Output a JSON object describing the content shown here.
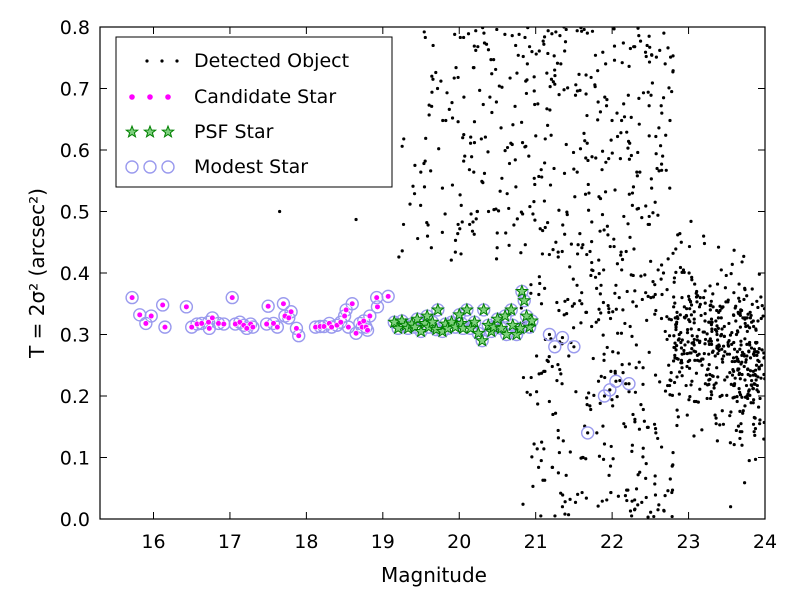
{
  "chart_data": {
    "type": "scatter",
    "xlabel": "Magnitude",
    "ylabel": "T = 2σ² (arcsec²)",
    "xlim": [
      15.3,
      24.0
    ],
    "ylim": [
      0.0,
      0.8
    ],
    "xticks": [
      16,
      17,
      18,
      19,
      20,
      21,
      22,
      23,
      24
    ],
    "yticks": [
      0.0,
      0.1,
      0.2,
      0.3,
      0.4,
      0.5,
      0.6,
      0.7,
      0.8
    ],
    "ytick_labels": [
      "0.0",
      "0.1",
      "0.2",
      "0.3",
      "0.4",
      "0.5",
      "0.6",
      "0.7",
      "0.8"
    ],
    "grid": false,
    "legend_position": "top-left",
    "legend": {
      "detected": "Detected Object",
      "candidate": "Candidate Star",
      "psf": "PSF Star",
      "modest": "Modest Star"
    },
    "colors": {
      "detected": "#000000",
      "candidate": "#ff00ff",
      "psf": "#008000",
      "modest": "#9a9aee"
    },
    "series": [
      {
        "name": "Candidate Star",
        "x": [
          15.72,
          15.82,
          15.9,
          15.97,
          16.12,
          16.15,
          16.43,
          16.5,
          16.57,
          16.63,
          16.72,
          16.73,
          16.77,
          16.85,
          16.92,
          17.03,
          17.07,
          17.13,
          17.18,
          17.22,
          17.27,
          17.3,
          17.48,
          17.5,
          17.57,
          17.62,
          17.7,
          17.72,
          17.77,
          17.8,
          17.87,
          17.9,
          18.12,
          18.18,
          18.23,
          18.3,
          18.33,
          18.4,
          18.45,
          18.5,
          18.52,
          18.55,
          18.6,
          18.65,
          18.7,
          18.73,
          18.75,
          18.78,
          18.8,
          18.83,
          18.92,
          18.93,
          19.07
        ],
        "y": [
          0.36,
          0.332,
          0.318,
          0.33,
          0.348,
          0.312,
          0.345,
          0.312,
          0.317,
          0.318,
          0.32,
          0.31,
          0.327,
          0.318,
          0.317,
          0.36,
          0.317,
          0.32,
          0.315,
          0.31,
          0.317,
          0.312,
          0.317,
          0.346,
          0.318,
          0.312,
          0.35,
          0.33,
          0.327,
          0.337,
          0.31,
          0.298,
          0.312,
          0.313,
          0.313,
          0.318,
          0.312,
          0.315,
          0.32,
          0.33,
          0.34,
          0.312,
          0.35,
          0.302,
          0.318,
          0.312,
          0.322,
          0.312,
          0.307,
          0.33,
          0.36,
          0.345,
          0.362
        ]
      },
      {
        "name": "PSF Star",
        "x": [
          19.15,
          19.2,
          19.25,
          19.3,
          19.33,
          19.38,
          19.42,
          19.45,
          19.5,
          19.55,
          19.58,
          19.6,
          19.65,
          19.7,
          19.72,
          19.78,
          19.82,
          19.85,
          19.9,
          19.95,
          20.0,
          20.03,
          20.05,
          20.1,
          20.15,
          20.2,
          20.25,
          20.3,
          20.32,
          20.38,
          20.42,
          20.45,
          20.5,
          20.55,
          20.6,
          20.62,
          20.68,
          20.7,
          20.75,
          20.8,
          20.82,
          20.85,
          20.88,
          20.92,
          20.95
        ],
        "y": [
          0.32,
          0.31,
          0.322,
          0.315,
          0.31,
          0.317,
          0.312,
          0.325,
          0.305,
          0.318,
          0.33,
          0.312,
          0.32,
          0.308,
          0.34,
          0.305,
          0.317,
          0.31,
          0.32,
          0.312,
          0.332,
          0.318,
          0.31,
          0.34,
          0.31,
          0.32,
          0.302,
          0.29,
          0.34,
          0.315,
          0.305,
          0.312,
          0.325,
          0.31,
          0.33,
          0.3,
          0.34,
          0.315,
          0.3,
          0.31,
          0.37,
          0.355,
          0.33,
          0.312,
          0.322
        ]
      },
      {
        "name": "Modest Star",
        "x": [
          21.18,
          21.25,
          21.35,
          21.5,
          21.68,
          21.9,
          21.97,
          22.05,
          22.22
        ],
        "y": [
          0.3,
          0.28,
          0.295,
          0.28,
          0.14,
          0.2,
          0.21,
          0.224,
          0.22
        ]
      },
      {
        "name": "Detected Object",
        "x": [],
        "y": []
      }
    ]
  }
}
